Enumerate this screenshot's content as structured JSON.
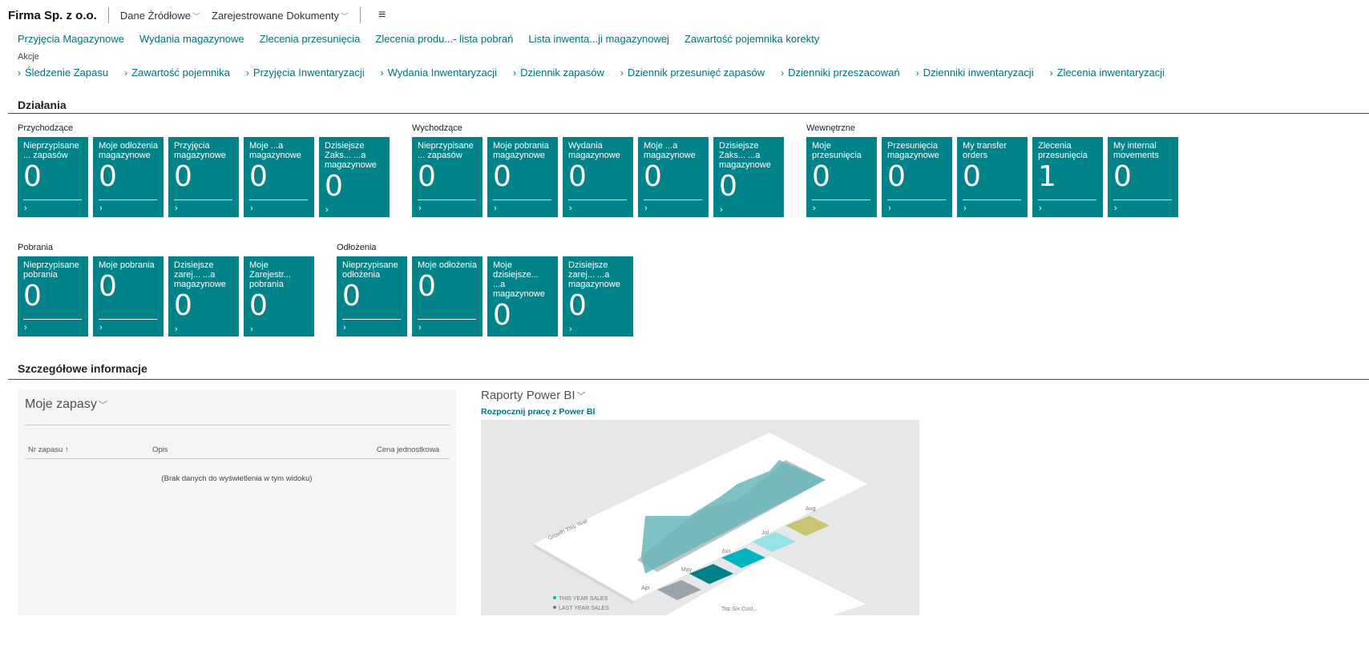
{
  "header": {
    "company": "Firma Sp. z o.o.",
    "menus": [
      "Dane Źródłowe",
      "Zarejestrowane Dokumenty"
    ],
    "hamburger_icon": "hamburger-icon"
  },
  "links": [
    "Przyjęcia Magazynowe",
    "Wydania magazynowe",
    "Zlecenia przesunięcia",
    "Zlecenia produ...- lista pobrań",
    "Lista inwenta...ji magazynowej",
    "Zawartość pojemnika korekty"
  ],
  "actions_label": "Akcje",
  "actions": [
    "Śledzenie Zapasu",
    "Zawartość pojemnika",
    "Przyjęcia Inwentaryzacji",
    "Wydania Inwentaryzacji",
    "Dziennik zapasów",
    "Dziennik przesunięć zapasów",
    "Dzienniki przeszacowań",
    "Dzienniki inwentaryzacji",
    "Zlecenia inwentaryzacji"
  ],
  "activities": {
    "title": "Działania",
    "tile_color": "#008489",
    "groups": [
      {
        "label": "Przychodzące",
        "tiles": [
          {
            "title": "Nieprzypisane ... zapasów",
            "value": "0"
          },
          {
            "title": "Moje odłożenia magazynowe",
            "value": "0"
          },
          {
            "title": "Przyjęcia magazynowe",
            "value": "0"
          },
          {
            "title": "Moje ...a magazynowe",
            "value": "0"
          },
          {
            "title": "Dzisiejsze Zaks... ...a magazynowe",
            "value": "0"
          }
        ]
      },
      {
        "label": "Wychodzące",
        "tiles": [
          {
            "title": "Nieprzypisane ... zapasów",
            "value": "0"
          },
          {
            "title": "Moje pobrania magazynowe",
            "value": "0"
          },
          {
            "title": "Wydania magazynowe",
            "value": "0"
          },
          {
            "title": "Moje ...a magazynowe",
            "value": "0"
          },
          {
            "title": "Dzisiejsze Zaks... ...a magazynowe",
            "value": "0"
          }
        ]
      },
      {
        "label": "Wewnętrzne",
        "tiles": [
          {
            "title": "Moje przesunięcia",
            "value": "0"
          },
          {
            "title": "Przesunięcia magazynowe",
            "value": "0"
          },
          {
            "title": "My transfer orders",
            "value": "0"
          },
          {
            "title": "Zlecenia przesunięcia",
            "value": "1"
          },
          {
            "title": "My internal movements",
            "value": "0"
          }
        ]
      },
      {
        "label": "Pobrania",
        "tiles": [
          {
            "title": "Nieprzypisane pobrania",
            "value": "0"
          },
          {
            "title": "Moje pobrania",
            "value": "0"
          },
          {
            "title": "Dzisiejsze zarej... ...a magazynowe",
            "value": "0"
          },
          {
            "title": "Moje Zarejestr... pobrania",
            "value": "0"
          }
        ]
      },
      {
        "label": "Odłożenia",
        "tiles": [
          {
            "title": "Nieprzypisane odłożenia",
            "value": "0"
          },
          {
            "title": "Moje odłożenia",
            "value": "0"
          },
          {
            "title": "Moje dzisiejsze... ...a magazynowe",
            "value": "0"
          },
          {
            "title": "Dzisiejsze zarej... ...a magazynowe",
            "value": "0"
          }
        ]
      }
    ]
  },
  "details": {
    "title": "Szczegółowe informacje",
    "my_items": {
      "title": "Moje zapasy",
      "columns": [
        "Nr zapasu",
        "Opis",
        "Cena jednostkowa"
      ],
      "sort_indicator": "↑",
      "empty": "(Brak danych do wyświetlenia w tym widoku)"
    },
    "powerbi": {
      "title": "Raporty Power BI",
      "link": "Rozpocznij pracę z Power BI",
      "image_labels": {
        "chart_title": "Growth This Year",
        "months": [
          "Apr",
          "May",
          "Jun",
          "Jul",
          "Aug"
        ],
        "legend": [
          "THIS YEAR SALES",
          "LAST YEAR SALES"
        ],
        "swatches": [
          "Selected",
          "Crocus"
        ],
        "bottom": "Top Six Cust..."
      }
    }
  }
}
